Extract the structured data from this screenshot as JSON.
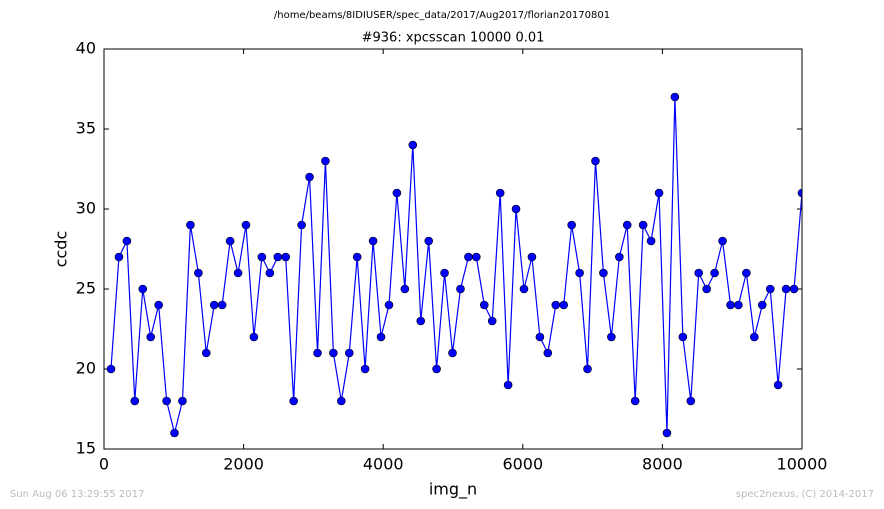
{
  "chart_data": {
    "type": "line",
    "suptitle": "/home/beams/8IDIUSER/spec_data/2017/Aug2017/florian20170801",
    "title": "#936: xpcsscan 10000 0.01",
    "x_label": "img_n",
    "y_label": "ccdc",
    "x": [
      100,
      214,
      328,
      441,
      555,
      669,
      783,
      897,
      1010,
      1124,
      1238,
      1352,
      1465,
      1579,
      1693,
      1807,
      1921,
      2034,
      2148,
      2262,
      2376,
      2490,
      2603,
      2717,
      2831,
      2945,
      3059,
      3172,
      3286,
      3400,
      3514,
      3627,
      3741,
      3855,
      3969,
      4083,
      4196,
      4310,
      4424,
      4538,
      4652,
      4765,
      4879,
      4993,
      5107,
      5221,
      5334,
      5448,
      5562,
      5676,
      5790,
      5903,
      6017,
      6131,
      6245,
      6358,
      6472,
      6586,
      6700,
      6814,
      6927,
      7041,
      7155,
      7269,
      7383,
      7496,
      7610,
      7724,
      7838,
      7952,
      8065,
      8179,
      8293,
      8407,
      8520,
      8634,
      8748,
      8862,
      8976,
      9089,
      9203,
      9317,
      9431,
      9545,
      9658,
      9772,
      9886,
      10000
    ],
    "series": [
      {
        "color": "#0000ff",
        "values": [
          20,
          27,
          28,
          18,
          25,
          22,
          24,
          18,
          16,
          18,
          29,
          26,
          21,
          24,
          24,
          28,
          26,
          29,
          22,
          27,
          26,
          27,
          27,
          18,
          29,
          32,
          21,
          33,
          21,
          18,
          21,
          27,
          20,
          28,
          22,
          24,
          31,
          25,
          34,
          23,
          28,
          20,
          26,
          21,
          25,
          27,
          27,
          24,
          23,
          31,
          19,
          30,
          25,
          27,
          22,
          21,
          24,
          24,
          29,
          26,
          20,
          33,
          26,
          22,
          27,
          29,
          18,
          29,
          28,
          31,
          16,
          37,
          22,
          18,
          26,
          25,
          26,
          28,
          24,
          24,
          26,
          22,
          24,
          25,
          19,
          25,
          25,
          31
        ]
      }
    ],
    "xlim": [
      0,
      10000
    ],
    "xticks": [
      0,
      2000,
      4000,
      6000,
      8000,
      10000
    ],
    "ylim": [
      15,
      40
    ],
    "yticks": [
      15,
      20,
      25,
      30,
      35,
      40
    ]
  },
  "footer": {
    "left": "Sun Aug 06 13:29:55 2017",
    "right": "spec2nexus, (C) 2014-2017"
  }
}
